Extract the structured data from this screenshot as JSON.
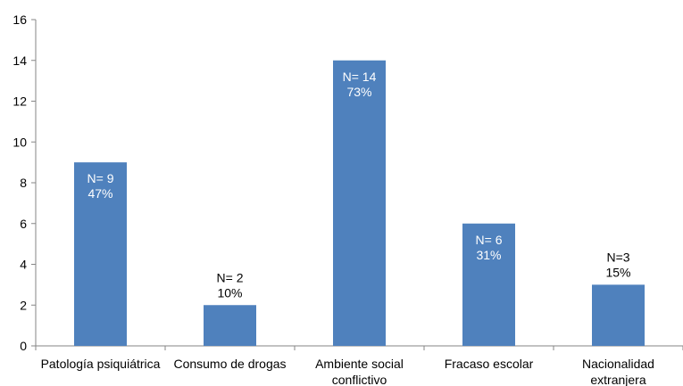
{
  "chart_data": {
    "type": "bar",
    "title": "",
    "xlabel": "",
    "ylabel": "",
    "ylim": [
      0,
      16
    ],
    "yticks": [
      0,
      2,
      4,
      6,
      8,
      10,
      12,
      14,
      16
    ],
    "grid": false,
    "legend": "none",
    "bar_color": "#4f81bd",
    "categories": [
      [
        "Patología psiquiátrica"
      ],
      [
        "Consumo de drogas"
      ],
      [
        "Ambiente social",
        "conflictivo"
      ],
      [
        "Fracaso escolar"
      ],
      [
        "Nacionalidad",
        "extranjera"
      ]
    ],
    "values": [
      9,
      2,
      14,
      6,
      3
    ],
    "data_labels": [
      [
        "N= 9",
        "47%"
      ],
      [
        "N= 2",
        "10%"
      ],
      [
        "N= 14",
        "73%"
      ],
      [
        "N= 6",
        "31%"
      ],
      [
        "N=3",
        "15%"
      ]
    ],
    "label_inside": [
      true,
      false,
      true,
      true,
      false
    ]
  }
}
